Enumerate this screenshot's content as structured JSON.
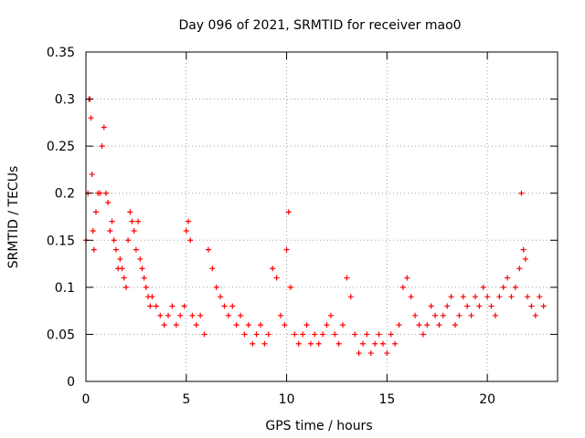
{
  "chart_data": {
    "type": "scatter",
    "title": "Day 096 of 2021, SRMTID for receiver mao0",
    "xlabel": "GPS time / hours",
    "ylabel": "SRMTID / TECUs",
    "xlim": [
      0,
      23.5
    ],
    "ylim": [
      0,
      0.35
    ],
    "x_ticks": [
      0,
      5,
      10,
      15,
      20
    ],
    "x_tick_labels": [
      "0",
      "5",
      "10",
      "15",
      "20"
    ],
    "y_ticks": [
      0,
      0.05,
      0.1,
      0.15,
      0.2,
      0.25,
      0.3,
      0.35
    ],
    "y_tick_labels": [
      "0",
      "0.05",
      "0.1",
      "0.15",
      "0.2",
      "0.25",
      "0.3",
      "0.35"
    ],
    "grid": true,
    "marker": "+",
    "color": "#ff0000",
    "series": [
      {
        "name": "SRMTID",
        "x": [
          0.0,
          0.1,
          0.15,
          0.2,
          0.25,
          0.3,
          0.35,
          0.4,
          0.5,
          0.6,
          0.7,
          0.8,
          0.9,
          1.0,
          1.1,
          1.2,
          1.3,
          1.4,
          1.5,
          1.6,
          1.7,
          1.8,
          1.9,
          2.0,
          2.1,
          2.2,
          2.3,
          2.4,
          2.5,
          2.6,
          2.7,
          2.8,
          2.9,
          3.0,
          3.1,
          3.2,
          3.3,
          3.5,
          3.7,
          3.9,
          4.1,
          4.3,
          4.5,
          4.7,
          4.9,
          5.0,
          5.1,
          5.2,
          5.3,
          5.5,
          5.7,
          5.9,
          6.1,
          6.3,
          6.5,
          6.7,
          6.9,
          7.1,
          7.3,
          7.5,
          7.7,
          7.9,
          8.1,
          8.3,
          8.5,
          8.7,
          8.9,
          9.1,
          9.3,
          9.5,
          9.7,
          9.9,
          10.0,
          10.1,
          10.2,
          10.4,
          10.6,
          10.8,
          11.0,
          11.2,
          11.4,
          11.6,
          11.8,
          12.0,
          12.2,
          12.4,
          12.6,
          12.8,
          13.0,
          13.2,
          13.4,
          13.6,
          13.8,
          14.0,
          14.2,
          14.4,
          14.6,
          14.8,
          15.0,
          15.2,
          15.4,
          15.6,
          15.8,
          16.0,
          16.2,
          16.4,
          16.6,
          16.8,
          17.0,
          17.2,
          17.4,
          17.6,
          17.8,
          18.0,
          18.2,
          18.4,
          18.6,
          18.8,
          19.0,
          19.2,
          19.4,
          19.6,
          19.8,
          20.0,
          20.2,
          20.4,
          20.6,
          20.8,
          21.0,
          21.2,
          21.4,
          21.6,
          21.7,
          21.8,
          21.9,
          22.0,
          22.2,
          22.4,
          22.6,
          22.8
        ],
        "y": [
          0.15,
          0.2,
          0.3,
          0.3,
          0.28,
          0.22,
          0.16,
          0.14,
          0.18,
          0.2,
          0.2,
          0.25,
          0.27,
          0.2,
          0.19,
          0.16,
          0.17,
          0.15,
          0.14,
          0.12,
          0.13,
          0.12,
          0.11,
          0.1,
          0.15,
          0.18,
          0.17,
          0.16,
          0.14,
          0.17,
          0.13,
          0.12,
          0.11,
          0.1,
          0.09,
          0.08,
          0.09,
          0.08,
          0.07,
          0.06,
          0.07,
          0.08,
          0.06,
          0.07,
          0.08,
          0.16,
          0.17,
          0.15,
          0.07,
          0.06,
          0.07,
          0.05,
          0.14,
          0.12,
          0.1,
          0.09,
          0.08,
          0.07,
          0.08,
          0.06,
          0.07,
          0.05,
          0.06,
          0.04,
          0.05,
          0.06,
          0.04,
          0.05,
          0.12,
          0.11,
          0.07,
          0.06,
          0.14,
          0.18,
          0.1,
          0.05,
          0.04,
          0.05,
          0.06,
          0.04,
          0.05,
          0.04,
          0.05,
          0.06,
          0.07,
          0.05,
          0.04,
          0.06,
          0.11,
          0.09,
          0.05,
          0.03,
          0.04,
          0.05,
          0.03,
          0.04,
          0.05,
          0.04,
          0.03,
          0.05,
          0.04,
          0.06,
          0.1,
          0.11,
          0.09,
          0.07,
          0.06,
          0.05,
          0.06,
          0.08,
          0.07,
          0.06,
          0.07,
          0.08,
          0.09,
          0.06,
          0.07,
          0.09,
          0.08,
          0.07,
          0.09,
          0.08,
          0.1,
          0.09,
          0.08,
          0.07,
          0.09,
          0.1,
          0.11,
          0.09,
          0.1,
          0.12,
          0.2,
          0.14,
          0.13,
          0.09,
          0.08,
          0.07,
          0.09,
          0.08
        ]
      }
    ]
  }
}
